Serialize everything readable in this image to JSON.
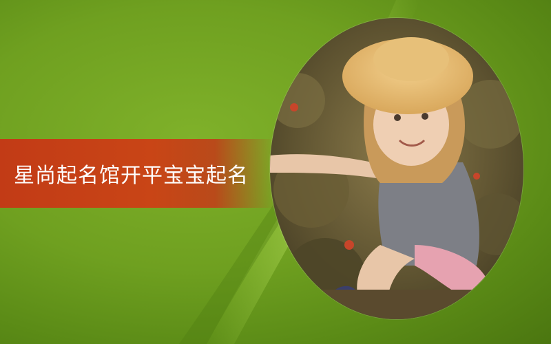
{
  "slide": {
    "title": "星尚起名馆开平宝宝起名",
    "photo_icon": "child-photo-icon",
    "colors": {
      "background": "#6fa020",
      "banner": "#c23b16",
      "text": "#ffffff"
    }
  }
}
